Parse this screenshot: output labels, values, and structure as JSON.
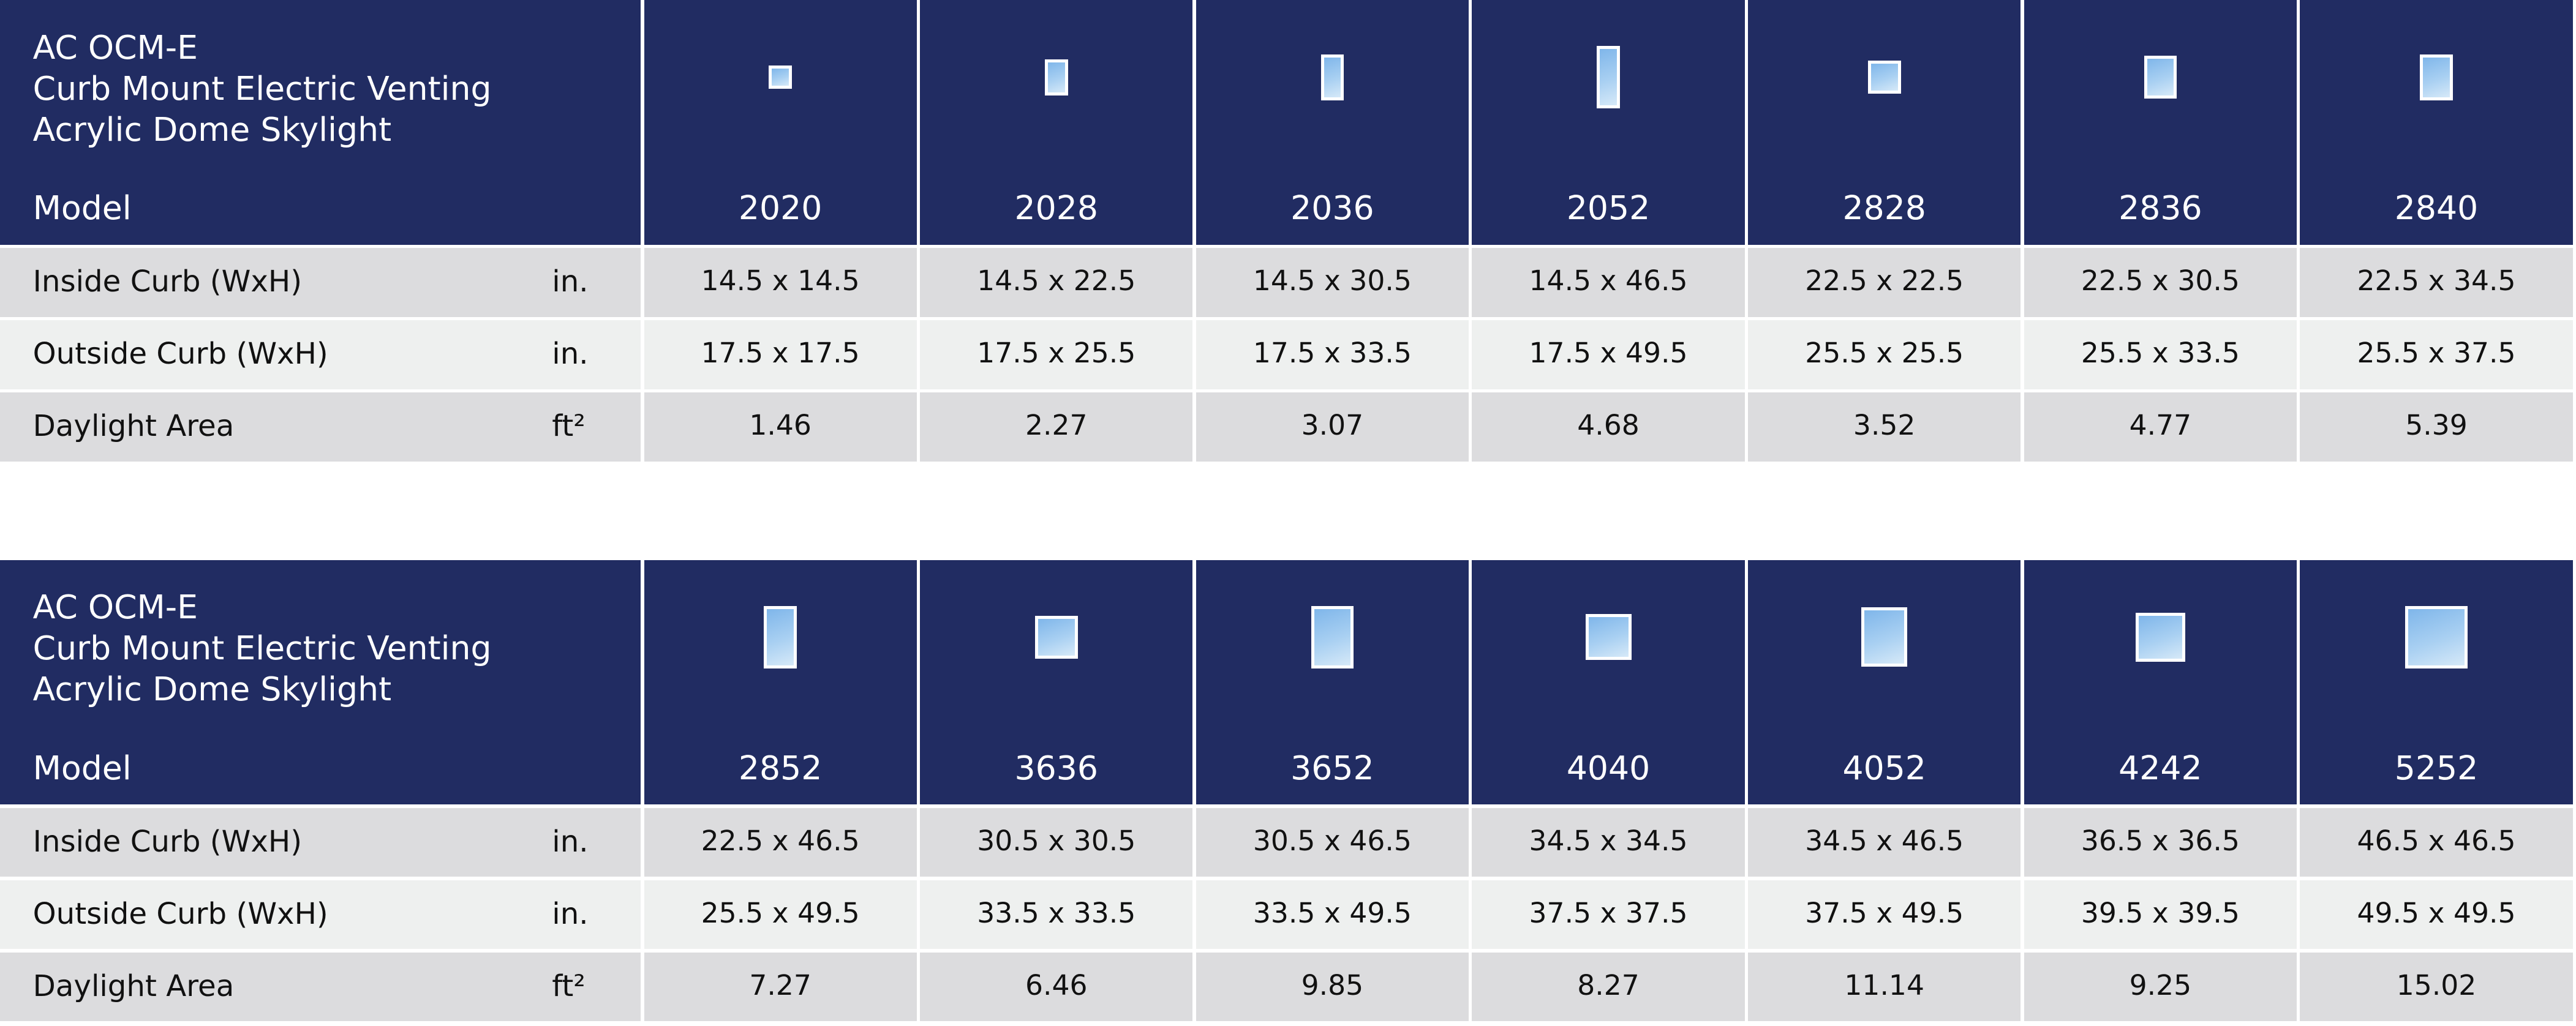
{
  "tables": [
    {
      "title": [
        "AC OCM-E",
        "Curb Mount Electric Venting",
        "Acrylic Dome Skylight"
      ],
      "header_label": "Model",
      "models": [
        "2020",
        "2028",
        "2036",
        "2052",
        "2828",
        "2836",
        "2840"
      ],
      "rows": [
        {
          "label": "Inside Curb (WxH)",
          "unit": "in.",
          "values": [
            "14.5 x 14.5",
            "14.5 x 22.5",
            "14.5 x 30.5",
            "14.5 x 46.5",
            "22.5 x 22.5",
            "22.5 x 30.5",
            "22.5 x 34.5"
          ]
        },
        {
          "label": "Outside Curb (WxH)",
          "unit": "in.",
          "values": [
            "17.5 x 17.5",
            "17.5 x 25.5",
            "17.5 x 33.5",
            "17.5 x 49.5",
            "25.5 x 25.5",
            "25.5 x 33.5",
            "25.5 x 37.5"
          ]
        },
        {
          "label": "Daylight Area",
          "unit": "ft²",
          "values": [
            "1.46",
            "2.27",
            "3.07",
            "4.68",
            "3.52",
            "4.77",
            "5.39"
          ]
        }
      ]
    },
    {
      "title": [
        "AC OCM-E",
        "Curb Mount Electric Venting",
        "Acrylic Dome Skylight"
      ],
      "header_label": "Model",
      "models": [
        "2852",
        "3636",
        "3652",
        "4040",
        "4052",
        "4242",
        "5252"
      ],
      "rows": [
        {
          "label": "Inside Curb (WxH)",
          "unit": "in.",
          "values": [
            "22.5 x 46.5",
            "30.5 x 30.5",
            "30.5 x 46.5",
            "34.5 x 34.5",
            "34.5 x 46.5",
            "36.5 x 36.5",
            "46.5 x 46.5"
          ]
        },
        {
          "label": "Outside Curb (WxH)",
          "unit": "in.",
          "values": [
            "25.5 x 49.5",
            "33.5 x 33.5",
            "33.5 x 49.5",
            "37.5 x 37.5",
            "37.5 x 49.5",
            "39.5 x 39.5",
            "49.5 x 49.5"
          ]
        },
        {
          "label": "Daylight Area",
          "unit": "ft²",
          "values": [
            "7.27",
            "6.46",
            "9.85",
            "8.27",
            "11.14",
            "9.25",
            "15.02"
          ]
        }
      ]
    }
  ]
}
